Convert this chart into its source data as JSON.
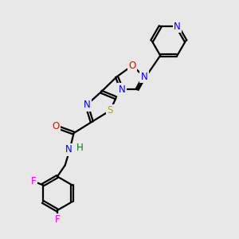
{
  "bg_color": "#e8e8e8",
  "bond_color": "#000000",
  "bond_width": 1.6,
  "atom_colors": {
    "N": "#0000ff",
    "O": "#ff0000",
    "S": "#aaaa00",
    "F": "#ff00ff",
    "C": "#000000",
    "H": "#008000"
  },
  "font_size": 8.5,
  "fig_size": [
    3.0,
    3.0
  ],
  "dpi": 100
}
